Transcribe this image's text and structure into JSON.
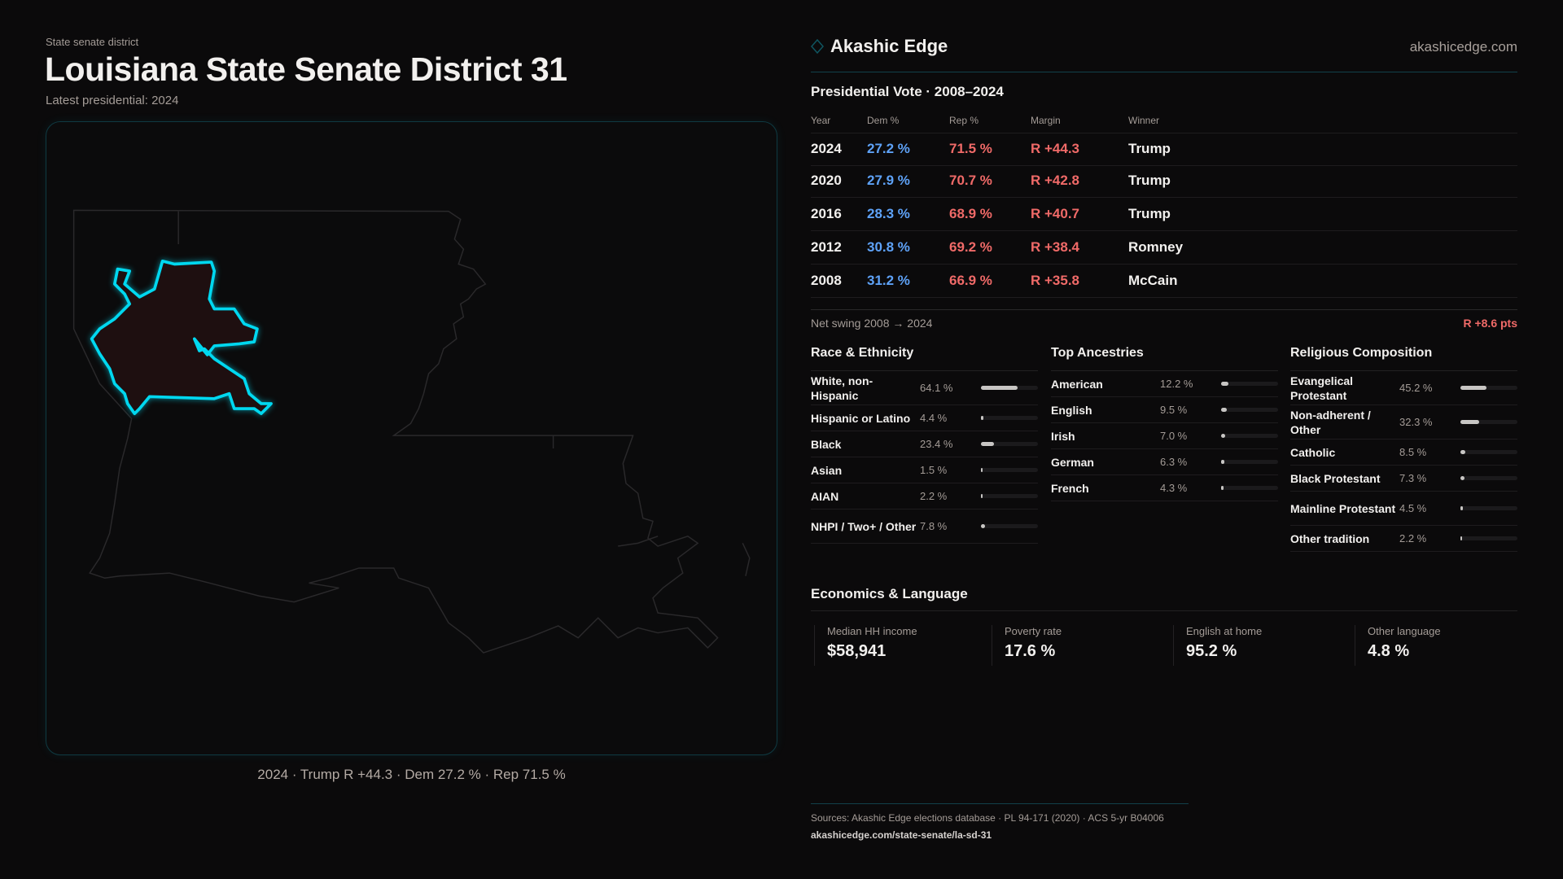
{
  "header": {
    "kicker": "State senate district",
    "title": "Louisiana State Senate District 31",
    "latest": "Latest presidential: 2024"
  },
  "map": {
    "caption": "2024 · Trump R +44.3 · Dem 27.2 % · Rep 71.5 %",
    "highlight_color": "#00d8f0",
    "fill_color": "#1e0f10"
  },
  "brand": {
    "name": "Akashic Edge",
    "site": "akashicedge.com"
  },
  "presidential": {
    "title": "Presidential Vote · 2008–2024",
    "columns": [
      "Year",
      "Dem %",
      "Rep %",
      "Margin",
      "Winner"
    ],
    "rows": [
      {
        "year": "2024",
        "dem": "27.2 %",
        "rep": "71.5 %",
        "margin": "R +44.3",
        "winner": "Trump"
      },
      {
        "year": "2020",
        "dem": "27.9 %",
        "rep": "70.7 %",
        "margin": "R +42.8",
        "winner": "Trump"
      },
      {
        "year": "2016",
        "dem": "28.3 %",
        "rep": "68.9 %",
        "margin": "R +40.7",
        "winner": "Trump"
      },
      {
        "year": "2012",
        "dem": "30.8 %",
        "rep": "69.2 %",
        "margin": "R +38.4",
        "winner": "Romney"
      },
      {
        "year": "2008",
        "dem": "31.2 %",
        "rep": "66.9 %",
        "margin": "R +35.8",
        "winner": "McCain"
      }
    ],
    "swing_label": "Net swing 2008 → 2024",
    "swing_value": "R +8.6 pts"
  },
  "sections": [
    {
      "title": "Race & Ethnicity",
      "items": [
        {
          "label": "White, non-Hispanic",
          "value": "64.1 %",
          "pct": 64.1
        },
        {
          "label": "Hispanic or Latino",
          "value": "4.4 %",
          "pct": 4.4
        },
        {
          "label": "Black",
          "value": "23.4 %",
          "pct": 23.4
        },
        {
          "label": "Asian",
          "value": "1.5 %",
          "pct": 1.5
        },
        {
          "label": "AIAN",
          "value": "2.2 %",
          "pct": 2.2
        },
        {
          "label": "NHPI / Two+ / Other",
          "value": "7.8 %",
          "pct": 7.8
        }
      ]
    },
    {
      "title": "Top Ancestries",
      "items": [
        {
          "label": "American",
          "value": "12.2 %",
          "pct": 12.2
        },
        {
          "label": "English",
          "value": "9.5 %",
          "pct": 9.5
        },
        {
          "label": "Irish",
          "value": "7.0 %",
          "pct": 7.0
        },
        {
          "label": "German",
          "value": "6.3 %",
          "pct": 6.3
        },
        {
          "label": "French",
          "value": "4.3 %",
          "pct": 4.3
        }
      ]
    },
    {
      "title": "Religious Composition",
      "items": [
        {
          "label": "Evangelical Protestant",
          "value": "45.2 %",
          "pct": 45.2
        },
        {
          "label": "Non-adherent / Other",
          "value": "32.3 %",
          "pct": 32.3
        },
        {
          "label": "Catholic",
          "value": "8.5 %",
          "pct": 8.5
        },
        {
          "label": "Black Protestant",
          "value": "7.3 %",
          "pct": 7.3
        },
        {
          "label": "Mainline Protestant",
          "value": "4.5 %",
          "pct": 4.5
        },
        {
          "label": "Other tradition",
          "value": "2.2 %",
          "pct": 2.2
        }
      ]
    }
  ],
  "economics": {
    "title": "Economics & Language",
    "stats": [
      {
        "label": "Median HH income",
        "value": "$58,941"
      },
      {
        "label": "Poverty rate",
        "value": "17.6 %"
      },
      {
        "label": "English at home",
        "value": "95.2 %"
      },
      {
        "label": "Other language",
        "value": "4.8 %"
      }
    ]
  },
  "footer": {
    "sources": "Sources: Akashic Edge elections database · PL 94-171 (2020) · ACS 5-yr B04006",
    "url": "akashicedge.com/state-senate/la-sd-31"
  }
}
